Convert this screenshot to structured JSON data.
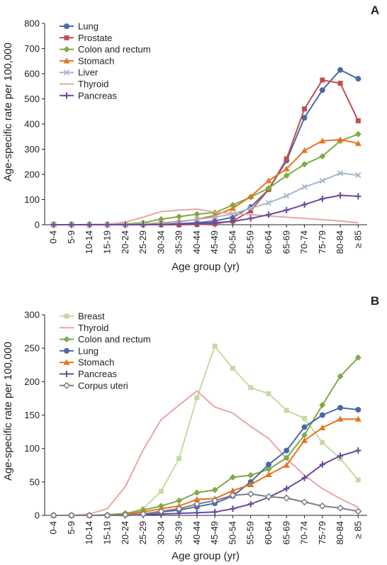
{
  "figure": {
    "panels": [
      {
        "panel_label": "A",
        "chart_data": {
          "type": "line",
          "xlabel": "Age group (yr)",
          "ylabel": "Age-specific rate per 100,000",
          "ylim": [
            0,
            800
          ],
          "yticks": [
            "0",
            "100",
            "200",
            "300",
            "400",
            "500",
            "600",
            "700",
            "800"
          ],
          "grid": false,
          "legend": "top-left",
          "categories": [
            "0-4",
            "5-9",
            "10-14",
            "15-19",
            "20-24",
            "25-29",
            "30-34",
            "35-39",
            "40-44",
            "45-49",
            "50-54",
            "55-59",
            "60-64",
            "65-69",
            "70-74",
            "75-79",
            "80-84",
            "≥ 85"
          ],
          "series": [
            {
              "name": "Lung",
              "color": "#4a6aa8",
              "marker": "circle",
              "values": [
                0,
                0,
                0,
                0,
                0,
                1,
                2,
                4,
                8,
                15,
                30,
                70,
                140,
                255,
                425,
                535,
                615,
                580
              ]
            },
            {
              "name": "Prostate",
              "color": "#c0504d",
              "marker": "square",
              "values": [
                0,
                0,
                0,
                0,
                0,
                0,
                0,
                0,
                1,
                4,
                15,
                55,
                140,
                262,
                460,
                575,
                562,
                413
              ]
            },
            {
              "name": "Colon and rectum",
              "color": "#7cab44",
              "marker": "diamond",
              "values": [
                0,
                0,
                0,
                1,
                3,
                8,
                22,
                32,
                42,
                48,
                78,
                110,
                145,
                195,
                240,
                272,
                333,
                360
              ]
            },
            {
              "name": "Stomach",
              "color": "#e6731e",
              "marker": "triangle",
              "values": [
                0,
                0,
                0,
                0,
                1,
                3,
                7,
                12,
                22,
                37,
                65,
                112,
                175,
                222,
                295,
                333,
                338,
                323
              ]
            },
            {
              "name": "Liver",
              "color": "#a8b6cc",
              "marker": "x",
              "values": [
                0,
                0,
                0,
                0,
                1,
                2,
                5,
                10,
                22,
                30,
                43,
                65,
                87,
                115,
                150,
                175,
                205,
                197
              ]
            },
            {
              "name": "Thyroid",
              "color": "#e6a7a4",
              "marker": "none",
              "values": [
                0,
                0,
                1,
                2,
                10,
                30,
                52,
                58,
                62,
                50,
                45,
                40,
                35,
                30,
                25,
                20,
                15,
                8
              ]
            },
            {
              "name": "Pancreas",
              "color": "#6a4a9c",
              "marker": "plus",
              "values": [
                0,
                0,
                0,
                0,
                0,
                0,
                1,
                2,
                4,
                8,
                13,
                25,
                40,
                58,
                80,
                103,
                117,
                113
              ]
            }
          ]
        }
      },
      {
        "panel_label": "B",
        "chart_data": {
          "type": "line",
          "xlabel": "Age group (yr)",
          "ylabel": "Age-specific rate per 100,000",
          "ylim": [
            0,
            300
          ],
          "yticks": [
            "0",
            "50",
            "100",
            "150",
            "200",
            "250",
            "300"
          ],
          "grid": false,
          "legend": "top-left",
          "categories": [
            "0-4",
            "5-9",
            "10-14",
            "15-19",
            "20-24",
            "25-29",
            "30-34",
            "35-39",
            "40-44",
            "45-49",
            "50-54",
            "55-59",
            "60-64",
            "65-69",
            "70-74",
            "75-79",
            "80-84",
            "≥ 85"
          ],
          "series": [
            {
              "name": "Breast",
              "color": "#c4dba0",
              "marker": "square",
              "values": [
                0,
                0,
                0,
                0,
                2,
                10,
                36,
                85,
                176,
                253,
                220,
                191,
                182,
                157,
                145,
                109,
                85,
                53
              ]
            },
            {
              "name": "Thyroid",
              "color": "#e6a7a4",
              "marker": "none",
              "values": [
                0,
                0,
                2,
                10,
                43,
                98,
                143,
                165,
                186,
                162,
                153,
                133,
                115,
                85,
                60,
                40,
                25,
                12
              ]
            },
            {
              "name": "Colon and rectum",
              "color": "#7cab44",
              "marker": "diamond",
              "values": [
                0,
                0,
                0,
                1,
                3,
                8,
                14,
                22,
                34,
                38,
                57,
                60,
                69,
                86,
                120,
                165,
                208,
                236
              ]
            },
            {
              "name": "Lung",
              "color": "#4a6aa8",
              "marker": "circle",
              "values": [
                0,
                0,
                0,
                0,
                1,
                2,
                5,
                8,
                13,
                18,
                29,
                50,
                76,
                97,
                132,
                150,
                161,
                158
              ]
            },
            {
              "name": "Stomach",
              "color": "#e6731e",
              "marker": "triangle",
              "values": [
                0,
                0,
                0,
                0,
                2,
                5,
                10,
                14,
                24,
                25,
                37,
                46,
                61,
                75,
                112,
                131,
                144,
                144
              ]
            },
            {
              "name": "Pancreas",
              "color": "#6a4a9c",
              "marker": "plus",
              "values": [
                0,
                0,
                0,
                0,
                0,
                1,
                2,
                3,
                4,
                5,
                10,
                17,
                27,
                40,
                56,
                76,
                89,
                97
              ]
            },
            {
              "name": "Corpus uteri",
              "color": "#7a7f88",
              "marker": "opendiamond",
              "values": [
                0,
                0,
                0,
                0,
                1,
                2,
                6,
                10,
                17,
                22,
                30,
                32,
                28,
                26,
                20,
                14,
                11,
                6
              ]
            }
          ]
        }
      }
    ]
  }
}
